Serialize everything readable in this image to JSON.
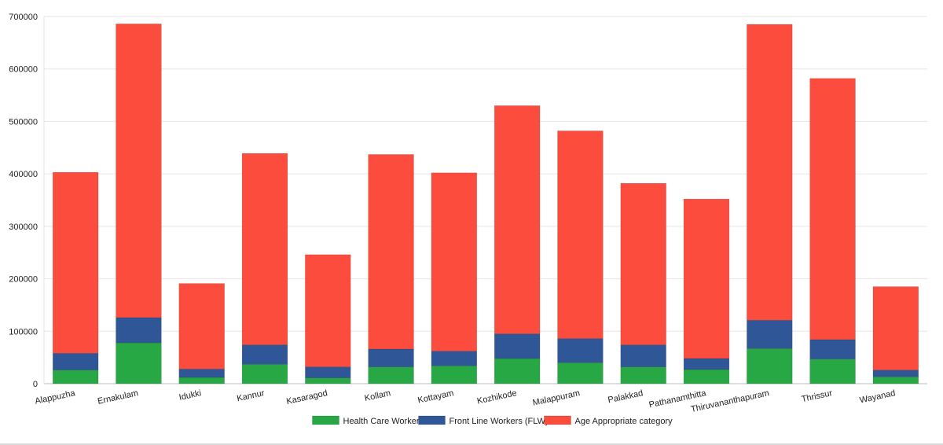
{
  "chart_data": {
    "type": "bar",
    "stacked": true,
    "categories": [
      "Alappuzha",
      "Ernakulam",
      "Idukki",
      "Kannur",
      "Kasaragod",
      "Kollam",
      "Kottayam",
      "Kozhikode",
      "Malappuram",
      "Palakkad",
      "Pathanamthitta",
      "Thiruvananthapuram",
      "Thrissur",
      "Wayanad"
    ],
    "series": [
      {
        "name": "Health Care Worker",
        "color": "#28a745",
        "values": [
          26000,
          78000,
          12000,
          37000,
          11000,
          32000,
          34000,
          48000,
          40000,
          32000,
          27000,
          67000,
          47000,
          13000
        ]
      },
      {
        "name": "Front Line Workers (FLW)",
        "color": "#2f5797",
        "values": [
          32000,
          48000,
          16000,
          37000,
          21000,
          34000,
          28000,
          47000,
          46000,
          42000,
          21000,
          54000,
          37000,
          13000
        ]
      },
      {
        "name": "Age Appropriate category",
        "color": "#fb4c3d",
        "values": [
          345000,
          560000,
          163000,
          365000,
          214000,
          371000,
          340000,
          435000,
          396000,
          308000,
          304000,
          564000,
          498000,
          159000
        ]
      }
    ],
    "ylim": [
      0,
      700000
    ],
    "yticks": [
      "0",
      "100000",
      "200000",
      "300000",
      "400000",
      "500000",
      "600000",
      "700000"
    ],
    "grid": true,
    "legend_position": "bottom"
  }
}
